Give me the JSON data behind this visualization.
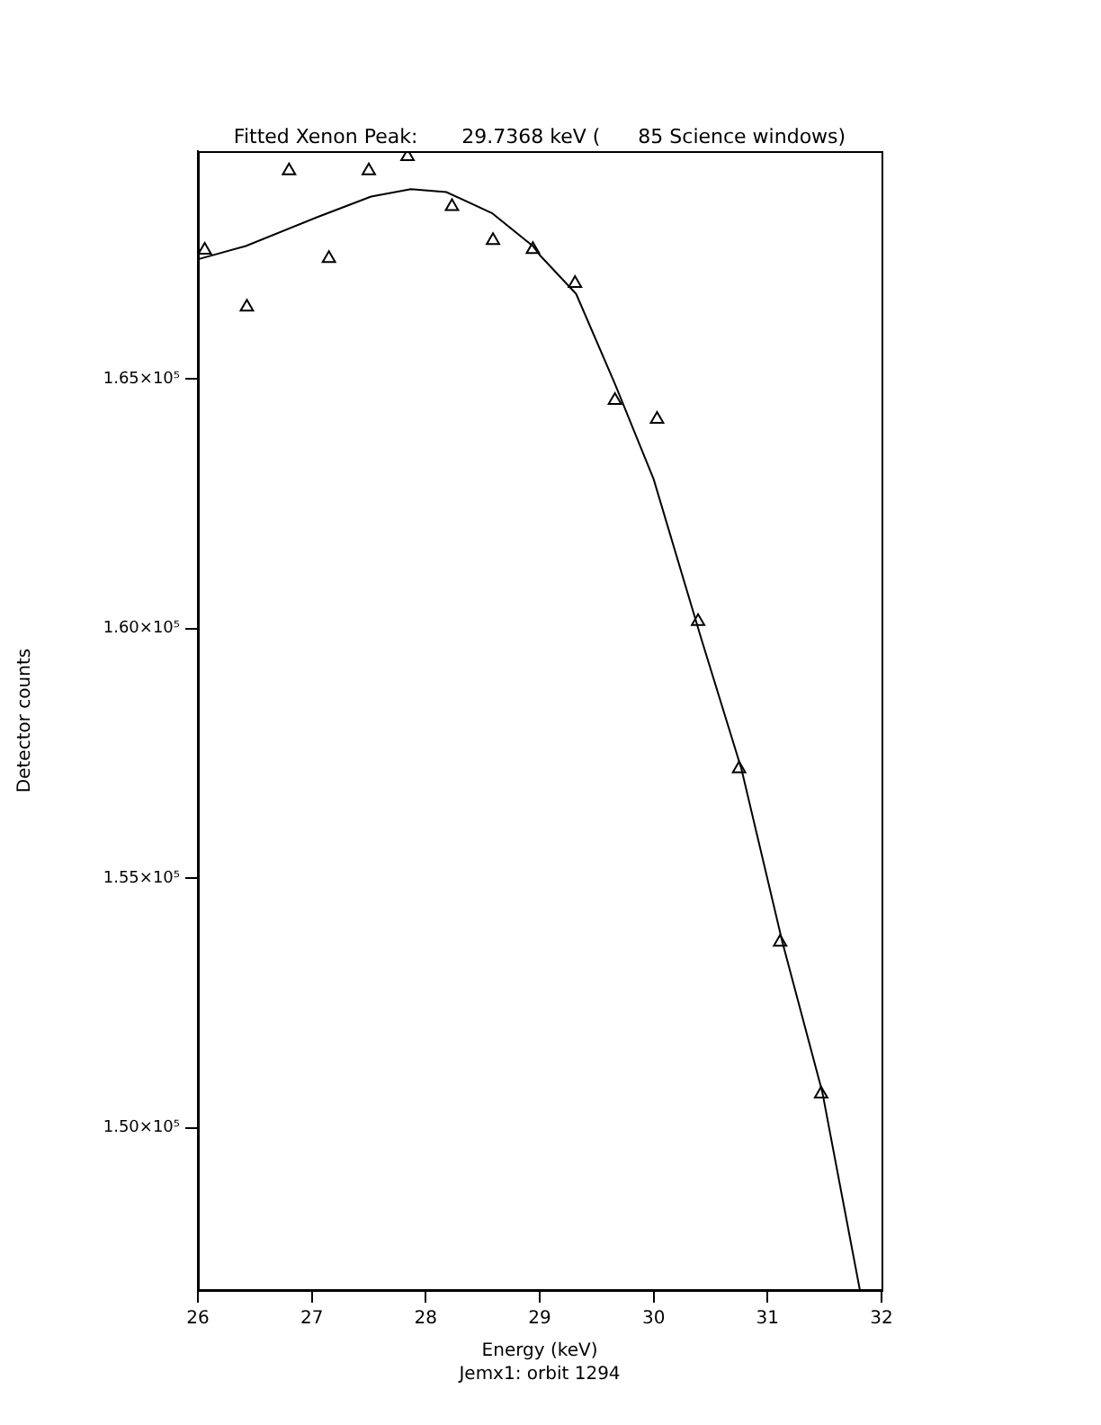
{
  "chart_data": {
    "type": "scatter",
    "title": "Fitted Xenon Peak:       29.7368 keV (      85 Science windows)",
    "xlabel": "Energy (keV)",
    "ylabel": "Detector counts",
    "annotations": [
      "Jemx1: orbit 1294"
    ],
    "xlim": [
      26,
      32
    ],
    "xticks": [
      26,
      27,
      28,
      29,
      30,
      31,
      32
    ],
    "ylim": [
      146750,
      169560
    ],
    "yticks": [
      {
        "value": 150000,
        "label": "1.50×10⁵"
      },
      {
        "value": 155000,
        "label": "1.55×10⁵"
      },
      {
        "value": 160000,
        "label": "1.60×10⁵"
      },
      {
        "value": 165000,
        "label": "1.65×10⁵"
      }
    ],
    "grid": false,
    "legend": false,
    "marker": "triangle",
    "series": [
      {
        "color": "#000000",
        "x": [
          26.06,
          26.43,
          26.8,
          27.15,
          27.5,
          27.84,
          28.23,
          28.59,
          28.94,
          29.31,
          29.66,
          30.03,
          30.39,
          30.75,
          31.11,
          31.47
        ],
        "values": [
          167580,
          166440,
          169170,
          167410,
          169170,
          169450,
          168450,
          167770,
          167590,
          166910,
          164570,
          164190,
          160140,
          157190,
          153720,
          150680
        ]
      },
      {
        "type": "line",
        "color": "#000000",
        "marker": "none",
        "x": [
          26.01,
          26.42,
          27.05,
          27.52,
          27.87,
          28.18,
          28.58,
          28.94,
          29.0,
          29.32,
          29.66,
          30.0,
          30.42,
          30.77,
          31.13,
          31.48,
          31.81
        ],
        "values": [
          167400,
          167660,
          168240,
          168650,
          168800,
          168740,
          168320,
          167660,
          167480,
          166700,
          164900,
          162990,
          159780,
          157190,
          153720,
          150720,
          146750
        ]
      }
    ]
  }
}
